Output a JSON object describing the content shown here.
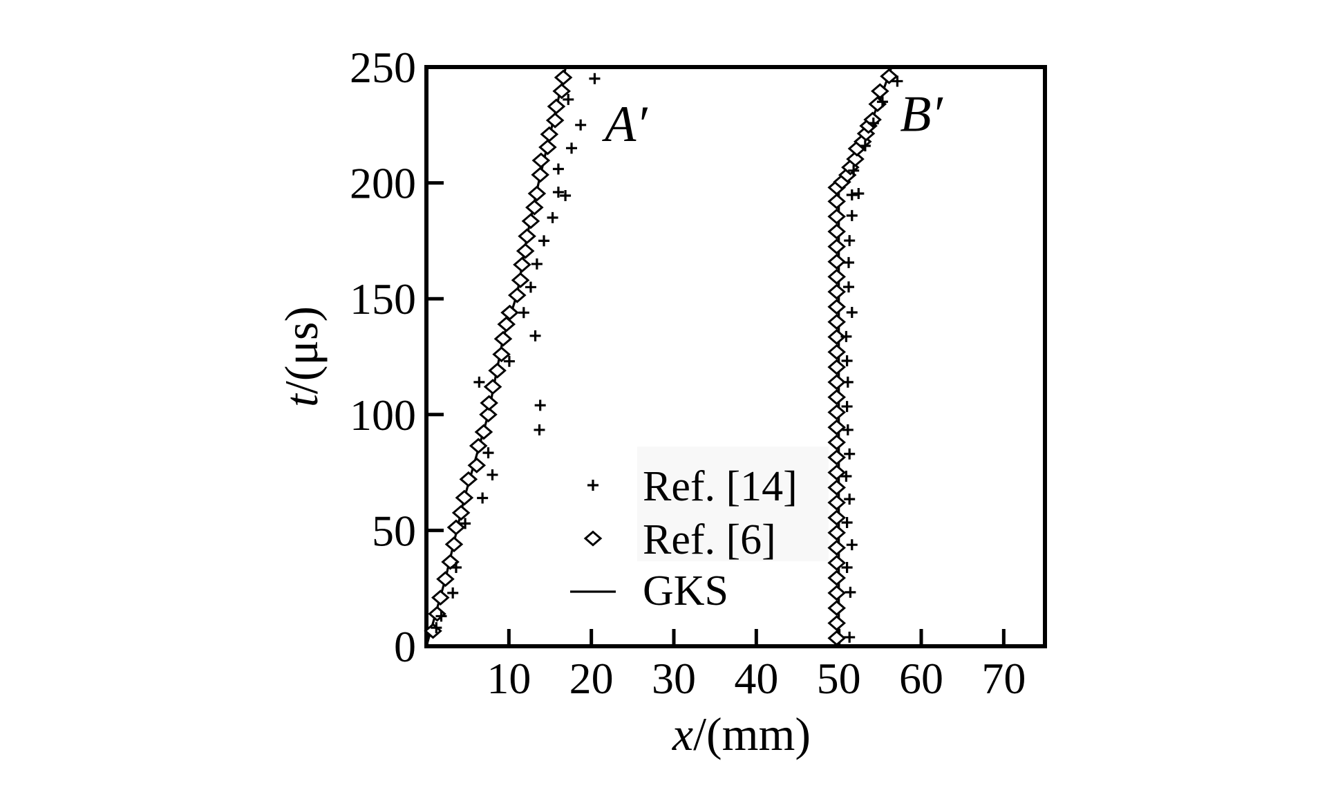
{
  "figure": {
    "background": "#ffffff",
    "ink": "#000000",
    "legend_box_fill": "#f8f8f8"
  },
  "chart_data": {
    "type": "line",
    "title": "",
    "xlabel": "x/(mm)",
    "xlabel_var": "x",
    "xlabel_rest": "/(mm)",
    "ylabel": "t/(μs)",
    "ylabel_var": "t",
    "ylabel_rest": "/(μs)",
    "xlim": [
      0,
      75
    ],
    "ylim": [
      0,
      250
    ],
    "xticks": [
      10,
      20,
      30,
      40,
      50,
      60,
      70
    ],
    "yticks": [
      0,
      50,
      100,
      150,
      200,
      250
    ],
    "grid": false,
    "frame": "box",
    "tick_direction": "in",
    "legend_position": "inside-lower-middle",
    "annotations": [
      {
        "text": "A′",
        "x": 24.2,
        "t": 225.5
      },
      {
        "text": "B′",
        "x": 60.0,
        "t": 229.8
      }
    ],
    "series": [
      {
        "name": "GKS",
        "style": "line",
        "branches": [
          [
            [
              0,
              0
            ],
            [
              2.3,
              29
            ],
            [
              4.6,
              64
            ],
            [
              7.5,
              100
            ],
            [
              9.3,
              133
            ],
            [
              11.0,
              152
            ],
            [
              12.2,
              177
            ],
            [
              13.6,
              200
            ],
            [
              14.8,
              218
            ],
            [
              16.9,
              250
            ]
          ],
          [
            [
              50,
              0
            ],
            [
              50,
              198
            ],
            [
              50.6,
              203
            ],
            [
              51.6,
              208
            ],
            [
              52.7,
              217
            ],
            [
              54.0,
              227
            ],
            [
              55.1,
              237
            ],
            [
              56.4,
              250
            ]
          ]
        ]
      },
      {
        "name": "Ref. [6]",
        "style": "diamond",
        "branches": [
          [
            [
              0.8,
              6.6
            ],
            [
              1.3,
              14
            ],
            [
              1.7,
              21
            ],
            [
              2.3,
              29
            ],
            [
              2.9,
              36.4
            ],
            [
              3.35,
              44
            ],
            [
              3.6,
              51.3
            ],
            [
              4.2,
              57.6
            ],
            [
              4.6,
              64.1
            ],
            [
              5.1,
              72.1
            ],
            [
              6.1,
              78.1
            ],
            [
              6.3,
              86.5
            ],
            [
              6.95,
              92.5
            ],
            [
              7.5,
              100
            ],
            [
              7.6,
              105
            ],
            [
              8.05,
              112
            ],
            [
              8.6,
              119
            ],
            [
              9.1,
              126
            ],
            [
              9.3,
              132.7
            ],
            [
              9.7,
              139
            ],
            [
              10.1,
              144
            ],
            [
              11.0,
              151.5
            ],
            [
              11.4,
              158
            ],
            [
              11.6,
              164.7
            ],
            [
              12.0,
              170.6
            ],
            [
              12.2,
              177
            ],
            [
              12.65,
              183.5
            ],
            [
              13.1,
              189.4
            ],
            [
              13.4,
              195.4
            ],
            [
              13.8,
              203.5
            ],
            [
              13.9,
              209.7
            ],
            [
              14.7,
              215.4
            ],
            [
              14.9,
              221
            ],
            [
              15.6,
              227
            ],
            [
              15.75,
              233
            ],
            [
              16.4,
              239.6
            ],
            [
              16.6,
              245.5
            ]
          ],
          [
            [
              49.75,
              3.5
            ],
            [
              49.75,
              10
            ],
            [
              49.75,
              16.5
            ],
            [
              49.75,
              23
            ],
            [
              49.75,
              29.5
            ],
            [
              49.75,
              36
            ],
            [
              49.75,
              42.5
            ],
            [
              49.75,
              49
            ],
            [
              49.75,
              55.5
            ],
            [
              49.75,
              62
            ],
            [
              49.75,
              68.5
            ],
            [
              49.75,
              75
            ],
            [
              49.75,
              81.5
            ],
            [
              49.75,
              88
            ],
            [
              49.75,
              94.5
            ],
            [
              49.75,
              101
            ],
            [
              49.75,
              107.5
            ],
            [
              49.75,
              114
            ],
            [
              49.75,
              120.5
            ],
            [
              49.75,
              127
            ],
            [
              49.75,
              133.5
            ],
            [
              49.75,
              140
            ],
            [
              49.75,
              146.5
            ],
            [
              49.75,
              153
            ],
            [
              49.75,
              159.5
            ],
            [
              49.75,
              166
            ],
            [
              49.75,
              172.5
            ],
            [
              49.75,
              179
            ],
            [
              49.75,
              185.5
            ],
            [
              49.75,
              192
            ],
            [
              49.75,
              198
            ],
            [
              50.4,
              200.4
            ],
            [
              51.05,
              203.4
            ],
            [
              51.4,
              206.7
            ],
            [
              52.0,
              210.3
            ],
            [
              52.2,
              214.8
            ],
            [
              52.9,
              217.8
            ],
            [
              53.3,
              221.3
            ],
            [
              53.6,
              224.6
            ],
            [
              54.1,
              227.3
            ],
            [
              54.7,
              234
            ],
            [
              55.0,
              239.6
            ],
            [
              56.1,
              246
            ]
          ]
        ]
      },
      {
        "name": "Ref. [14]",
        "style": "plus",
        "branches": [
          [
            [
              1.2,
              8
            ],
            [
              1.8,
              13
            ],
            [
              3.2,
              23
            ],
            [
              3.6,
              34
            ],
            [
              4.7,
              53
            ],
            [
              6.8,
              64
            ],
            [
              8.0,
              74
            ],
            [
              7.5,
              83.5
            ],
            [
              13.7,
              93.4
            ],
            [
              13.8,
              104
            ],
            [
              6.4,
              114
            ],
            [
              10.05,
              123
            ],
            [
              13.2,
              134
            ],
            [
              11.8,
              144
            ],
            [
              12.65,
              155
            ],
            [
              13.4,
              165
            ],
            [
              14.25,
              175
            ],
            [
              15.3,
              185
            ],
            [
              16.85,
              194.5
            ],
            [
              16.0,
              196
            ],
            [
              16.0,
              206
            ],
            [
              17.6,
              215
            ],
            [
              18.7,
              225
            ],
            [
              17.2,
              236
            ],
            [
              20.4,
              245
            ]
          ],
          [
            [
              51.3,
              3.9
            ],
            [
              51.4,
              23.3
            ],
            [
              51.0,
              34
            ],
            [
              51.6,
              43.8
            ],
            [
              51.0,
              53.4
            ],
            [
              51.3,
              63.5
            ],
            [
              50.9,
              73.4
            ],
            [
              51.3,
              83
            ],
            [
              51.1,
              93.4
            ],
            [
              51.0,
              103.5
            ],
            [
              51.1,
              114
            ],
            [
              51.0,
              123.2
            ],
            [
              50.9,
              133.7
            ],
            [
              51.6,
              144.1
            ],
            [
              51.2,
              155.1
            ],
            [
              51.2,
              165.6
            ],
            [
              51.3,
              175.1
            ],
            [
              51.6,
              185.9
            ],
            [
              51.6,
              194.8
            ],
            [
              52.4,
              195.4
            ],
            [
              51.8,
              205.3
            ],
            [
              53.2,
              216
            ],
            [
              54.2,
              225.8
            ],
            [
              55.3,
              235
            ],
            [
              57.1,
              243.9
            ]
          ]
        ]
      }
    ],
    "legend": [
      {
        "label": "Ref. [14]",
        "marker": "plus"
      },
      {
        "label": "Ref. [6]",
        "marker": "diamond"
      },
      {
        "label": "GKS",
        "marker": "line"
      }
    ]
  }
}
